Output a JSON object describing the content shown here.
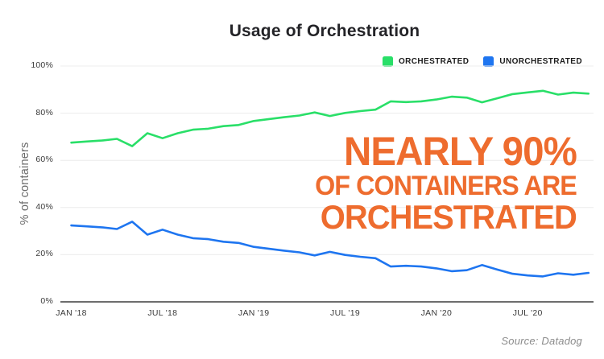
{
  "header": {
    "title": "Usage of Orchestration"
  },
  "annotation": {
    "line1": "NEARLY 90%",
    "line2": "OF CONTAINERS ARE",
    "line3": "ORCHESTRATED",
    "color": "#ee6c2e"
  },
  "footer": {
    "source": "Source: Datadog"
  },
  "chart_data": {
    "type": "line",
    "title": "Usage of Orchestration",
    "xlabel": "",
    "ylabel": "% of containers",
    "ylim": [
      0,
      100
    ],
    "grid": true,
    "legend_position": "top-right",
    "x_interval": "monthly",
    "x_start": "JAN '18",
    "x_end": "NOV '20",
    "n_points": 35,
    "xtick_labels": [
      "JAN '18",
      "JUL '18",
      "JAN '19",
      "JUL '19",
      "JAN '20",
      "JUL '20"
    ],
    "xtick_month_index": [
      0,
      6,
      12,
      18,
      24,
      30
    ],
    "ytick_labels": [
      "0%",
      "20%",
      "40%",
      "60%",
      "80%",
      "100%"
    ],
    "ytick_values": [
      0,
      20,
      40,
      60,
      80,
      100
    ],
    "series": [
      {
        "name": "ORCHESTRATED",
        "color": "#29df68",
        "values": [
          67.5,
          68.0,
          68.4,
          69.1,
          66.0,
          71.5,
          69.4,
          71.5,
          73.0,
          73.4,
          74.5,
          75.0,
          76.7,
          77.5,
          78.3,
          79.0,
          80.3,
          78.8,
          80.1,
          80.9,
          81.5,
          85.0,
          84.7,
          85.0,
          85.8,
          87.0,
          86.6,
          84.6,
          86.3,
          88.1,
          88.8,
          89.5,
          87.9,
          88.7,
          88.3
        ]
      },
      {
        "name": "UNORCHESTRATED",
        "color": "#1e75f0",
        "values": [
          32.4,
          32.0,
          31.6,
          30.9,
          34.0,
          28.5,
          30.6,
          28.5,
          27.0,
          26.6,
          25.5,
          25.0,
          23.3,
          22.5,
          21.7,
          21.0,
          19.7,
          21.2,
          19.9,
          19.1,
          18.5,
          15.0,
          15.3,
          15.0,
          14.2,
          13.0,
          13.4,
          15.6,
          13.7,
          11.9,
          11.2,
          10.8,
          12.1,
          11.5,
          12.3
        ]
      }
    ]
  }
}
